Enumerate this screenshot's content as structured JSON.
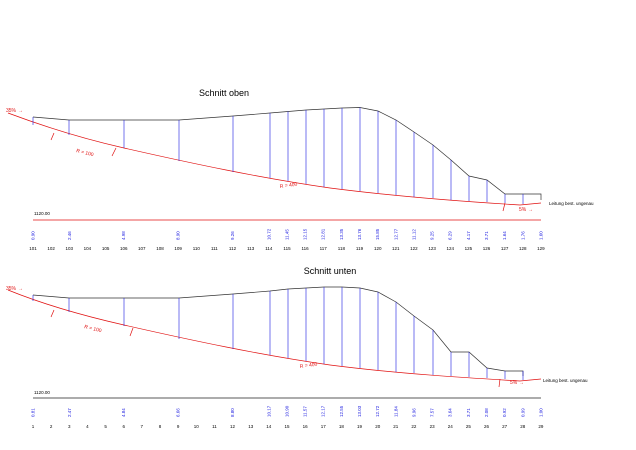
{
  "sections": [
    {
      "title": "Schnitt oben",
      "grade_left": "35%",
      "grade_right": "5%",
      "radius_1": "R = 100",
      "radius_2": "R = 400",
      "note": "Leitung best. ungenau",
      "datum": "1120.00",
      "stations": [
        "101",
        "102",
        "103",
        "104",
        "105",
        "106",
        "107",
        "108",
        "109",
        "110",
        "111",
        "112",
        "113",
        "114",
        "115",
        "116",
        "117",
        "118",
        "119",
        "120",
        "121",
        "122",
        "123",
        "124",
        "125",
        "126",
        "127",
        "128",
        "129"
      ],
      "heights": [
        {
          "station": 0,
          "value": "0.90"
        },
        {
          "station": 2,
          "value": "2.46"
        },
        {
          "station": 5,
          "value": "4.98"
        },
        {
          "station": 8,
          "value": "8.90"
        },
        {
          "station": 11,
          "value": "9.26"
        },
        {
          "station": 13,
          "value": "10.72"
        },
        {
          "station": 14,
          "value": "11.45"
        },
        {
          "station": 15,
          "value": "12.15"
        },
        {
          "station": 16,
          "value": "12.81"
        },
        {
          "station": 17,
          "value": "13.35"
        },
        {
          "station": 18,
          "value": "13.76"
        },
        {
          "station": 19,
          "value": "15.85"
        },
        {
          "station": 20,
          "value": "12.77"
        },
        {
          "station": 21,
          "value": "11.12"
        },
        {
          "station": 22,
          "value": "9.25"
        },
        {
          "station": 23,
          "value": "6.29"
        },
        {
          "station": 24,
          "value": "4.17"
        },
        {
          "station": 25,
          "value": "3.71"
        },
        {
          "station": 26,
          "value": "1.64"
        },
        {
          "station": 27,
          "value": "1.76"
        },
        {
          "station": 28,
          "value": "1.60"
        }
      ]
    },
    {
      "title": "Schnitt unten",
      "grade_left": "35%",
      "grade_right": "5%",
      "radius_1": "R = 100",
      "radius_2": "R = 400",
      "note": "Leitung best. ungenau",
      "datum": "1120.00",
      "stations": [
        "1",
        "2",
        "3",
        "4",
        "5",
        "6",
        "7",
        "8",
        "9",
        "10",
        "11",
        "12",
        "13",
        "14",
        "15",
        "16",
        "17",
        "18",
        "19",
        "20",
        "21",
        "22",
        "23",
        "24",
        "25",
        "26",
        "27",
        "28",
        "29"
      ],
      "heights": [
        {
          "station": 0,
          "value": "0.81"
        },
        {
          "station": 2,
          "value": "2.47"
        },
        {
          "station": 5,
          "value": "4.84"
        },
        {
          "station": 8,
          "value": "6.66"
        },
        {
          "station": 11,
          "value": "8.80"
        },
        {
          "station": 13,
          "value": "10.17"
        },
        {
          "station": 14,
          "value": "10.90"
        },
        {
          "station": 15,
          "value": "11.57"
        },
        {
          "station": 16,
          "value": "12.17"
        },
        {
          "station": 17,
          "value": "12.55"
        },
        {
          "station": 18,
          "value": "13.03"
        },
        {
          "station": 19,
          "value": "12.72"
        },
        {
          "station": 20,
          "value": "11.84"
        },
        {
          "station": 21,
          "value": "9.96"
        },
        {
          "station": 22,
          "value": "7.57"
        },
        {
          "station": 23,
          "value": "3.64"
        },
        {
          "station": 24,
          "value": "3.71"
        },
        {
          "station": 25,
          "value": "2.08"
        },
        {
          "station": 26,
          "value": "0.92"
        },
        {
          "station": 27,
          "value": "0.99"
        },
        {
          "station": 28,
          "value": "1.00"
        }
      ]
    }
  ],
  "colors": {
    "profile": "#333333",
    "subgrade": "#e01010",
    "verticals": "#1a1ae0",
    "labels": "#1a1ae0"
  }
}
